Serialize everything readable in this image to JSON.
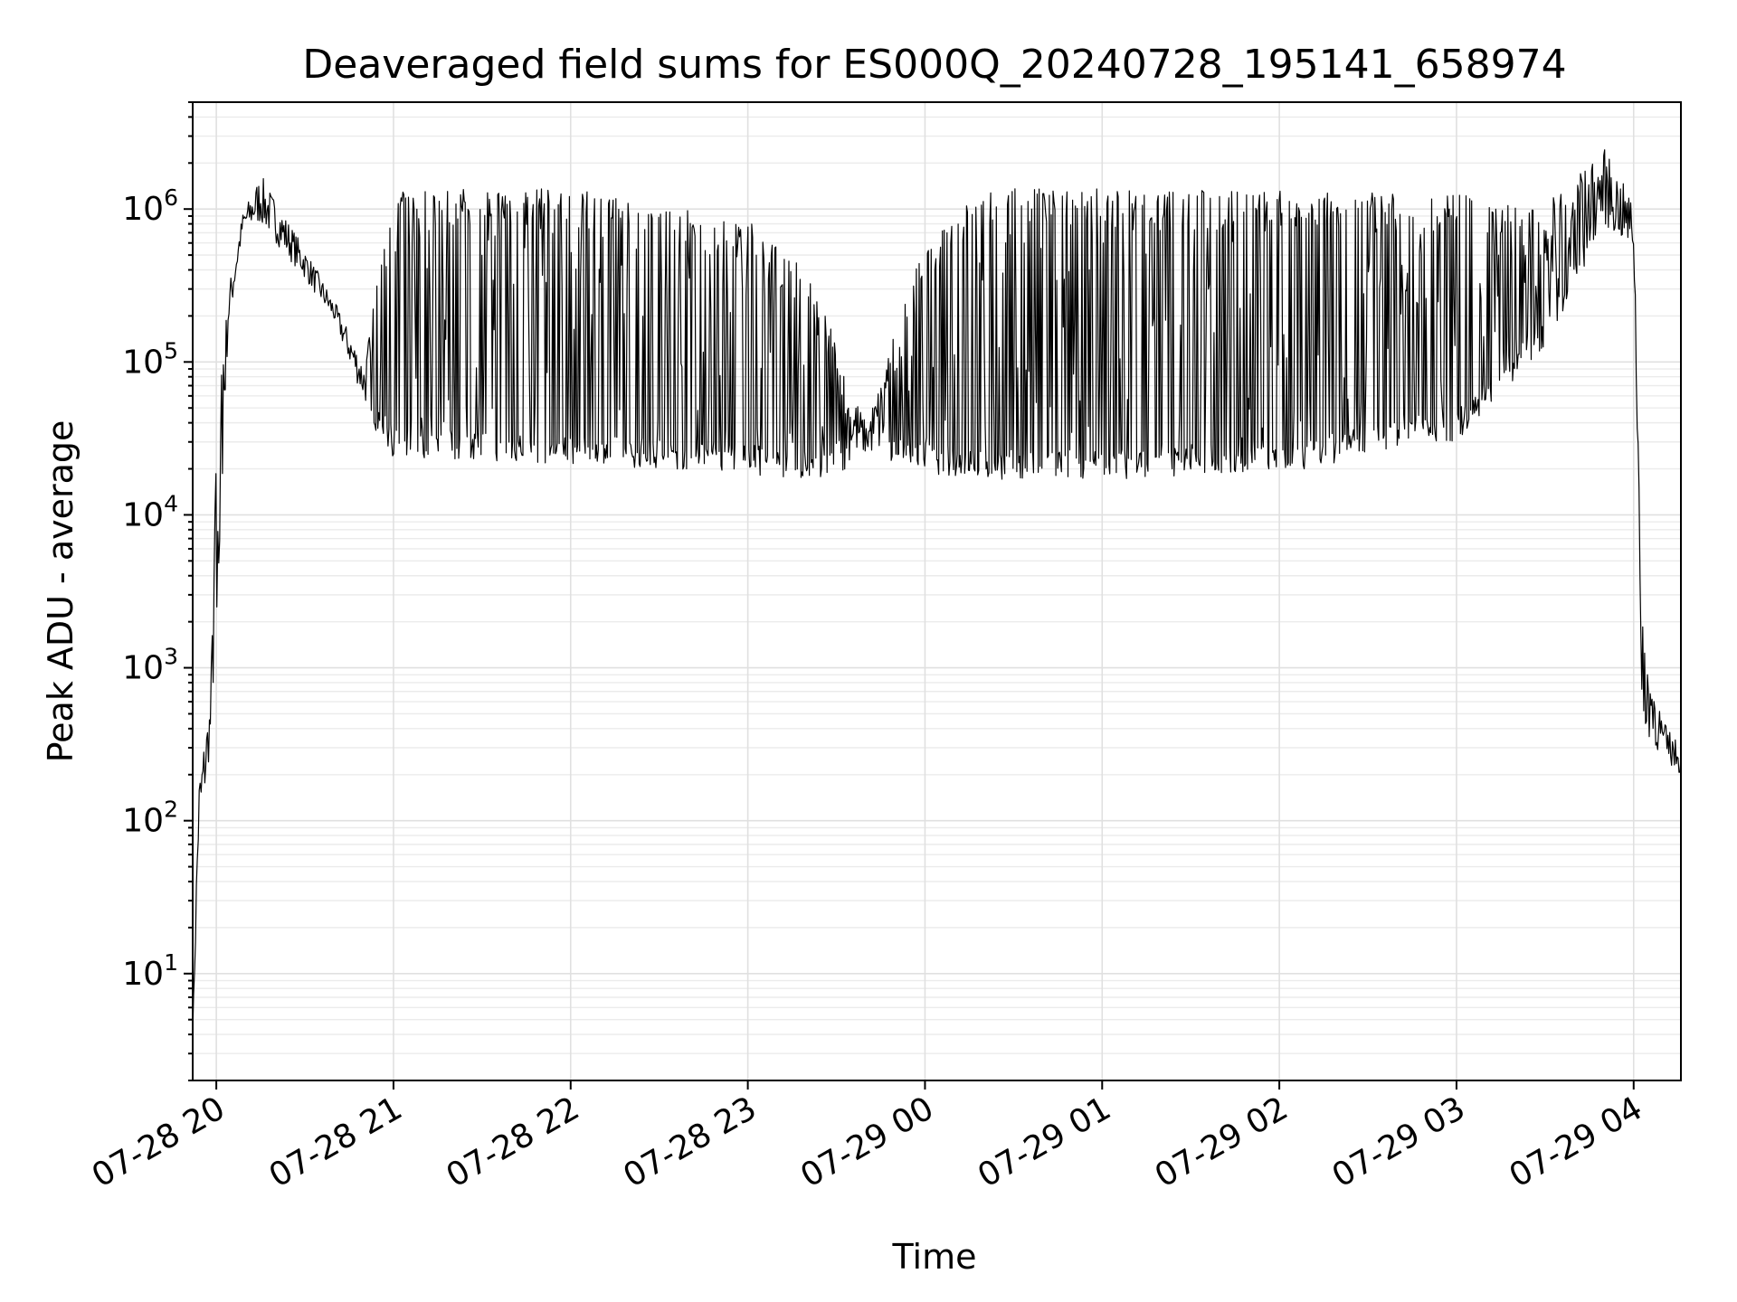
{
  "chart_data": {
    "type": "line",
    "title": "Deaveraged field sums for ES000Q_20240728_195141_658974",
    "xlabel": "Time",
    "ylabel": "Peak ADU - average",
    "yscale": "log",
    "xlim": [
      "2024-07-28 19:52",
      "2024-07-29 04:16"
    ],
    "ylim": [
      2,
      5000000
    ],
    "grid": true,
    "x_ticks": [
      {
        "label": "07-28 20",
        "time": "2024-07-28 20:00"
      },
      {
        "label": "07-28 21",
        "time": "2024-07-28 21:00"
      },
      {
        "label": "07-28 22",
        "time": "2024-07-28 22:00"
      },
      {
        "label": "07-28 23",
        "time": "2024-07-28 23:00"
      },
      {
        "label": "07-29 00",
        "time": "2024-07-29 00:00"
      },
      {
        "label": "07-29 01",
        "time": "2024-07-29 01:00"
      },
      {
        "label": "07-29 02",
        "time": "2024-07-29 02:00"
      },
      {
        "label": "07-29 03",
        "time": "2024-07-29 03:00"
      },
      {
        "label": "07-29 04",
        "time": "2024-07-29 04:00"
      }
    ],
    "y_ticks": [
      {
        "base": "10",
        "exp": "1",
        "value": 10
      },
      {
        "base": "10",
        "exp": "2",
        "value": 100
      },
      {
        "base": "10",
        "exp": "3",
        "value": 1000
      },
      {
        "base": "10",
        "exp": "4",
        "value": 10000
      },
      {
        "base": "10",
        "exp": "5",
        "value": 100000
      },
      {
        "base": "10",
        "exp": "6",
        "value": 1000000
      }
    ],
    "series": [
      {
        "color": "#000000",
        "envelope_description_points": [
          {
            "time": "2024-07-28 19:52",
            "low": 4,
            "high": 4
          },
          {
            "time": "2024-07-28 19:54",
            "low": 60,
            "high": 200
          },
          {
            "time": "2024-07-28 19:58",
            "low": 300,
            "high": 650
          },
          {
            "time": "2024-07-28 20:00",
            "low": 2000,
            "high": 30000
          },
          {
            "time": "2024-07-28 20:04",
            "low": 150000,
            "high": 300000
          },
          {
            "time": "2024-07-28 20:09",
            "low": 700000,
            "high": 950000
          },
          {
            "time": "2024-07-28 20:15",
            "low": 800000,
            "high": 1700000
          },
          {
            "time": "2024-07-28 20:30",
            "low": 350000,
            "high": 550000
          },
          {
            "time": "2024-07-28 20:40",
            "low": 180000,
            "high": 250000
          },
          {
            "time": "2024-07-28 20:50",
            "low": 55000,
            "high": 100000
          },
          {
            "time": "2024-07-28 21:00",
            "low": 28000,
            "high": 1300000
          },
          {
            "time": "2024-07-28 22:00",
            "low": 25000,
            "high": 1300000
          },
          {
            "time": "2024-07-28 23:00",
            "low": 22000,
            "high": 800000
          },
          {
            "time": "2024-07-28 23:20",
            "low": 17000,
            "high": 400000
          },
          {
            "time": "2024-07-28 23:40",
            "low": 25000,
            "high": 40000
          },
          {
            "time": "2024-07-29 00:00",
            "low": 22000,
            "high": 600000
          },
          {
            "time": "2024-07-29 00:20",
            "low": 20000,
            "high": 1300000
          },
          {
            "time": "2024-07-29 01:00",
            "low": 20000,
            "high": 1300000
          },
          {
            "time": "2024-07-29 02:00",
            "low": 22000,
            "high": 1250000
          },
          {
            "time": "2024-07-29 03:00",
            "low": 35000,
            "high": 1200000
          },
          {
            "time": "2024-07-29 03:30",
            "low": 150000,
            "high": 1000000
          },
          {
            "time": "2024-07-29 03:50",
            "low": 800000,
            "high": 2500000
          },
          {
            "time": "2024-07-29 04:00",
            "low": 500000,
            "high": 1100000
          },
          {
            "time": "2024-07-29 04:03",
            "low": 400,
            "high": 2000
          },
          {
            "time": "2024-07-29 04:10",
            "low": 250,
            "high": 450
          },
          {
            "time": "2024-07-29 04:16",
            "low": 200,
            "high": 300
          }
        ]
      }
    ]
  }
}
